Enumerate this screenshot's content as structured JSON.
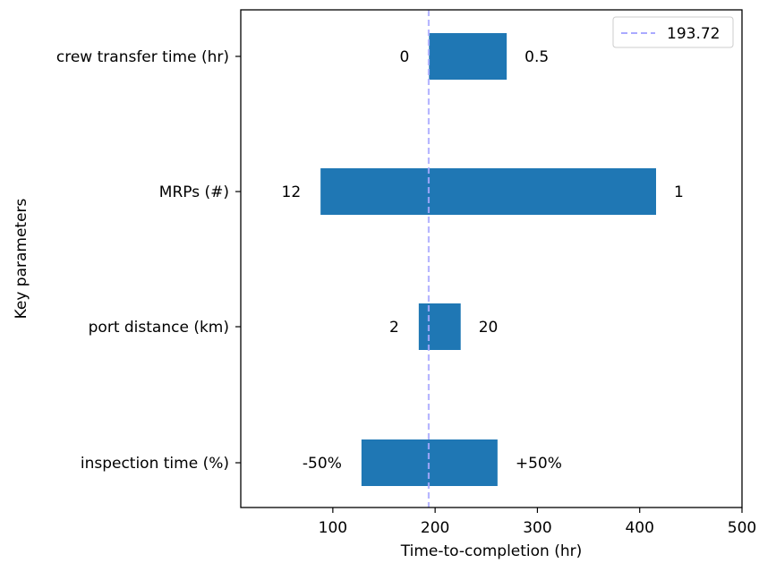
{
  "chart_data": {
    "type": "bar",
    "orientation": "horizontal",
    "subtype": "tornado",
    "xlabel": "Time-to-completion (hr)",
    "ylabel": "Key parameters",
    "xlim": [
      10,
      500
    ],
    "xticks": [
      "100",
      "200",
      "300",
      "400",
      "500"
    ],
    "grid": false,
    "legend": {
      "placement": "top-right",
      "entries": [
        {
          "label": "193.72",
          "style": "dashed",
          "color": "#aaaaff"
        }
      ]
    },
    "baseline": 193.72,
    "bar_color": "#1f77b4",
    "categories": [
      "crew transfer time (hr)",
      "MRPs (#)",
      "port distance (km)",
      "inspection time (%)"
    ],
    "bars": [
      {
        "category": "crew transfer time (hr)",
        "low": 194,
        "high": 270,
        "left_label": "0",
        "right_label": "0.5"
      },
      {
        "category": "MRPs (#)",
        "low": 88,
        "high": 416,
        "left_label": "12",
        "right_label": "1"
      },
      {
        "category": "port distance (km)",
        "low": 184,
        "high": 225,
        "left_label": "2",
        "right_label": "20"
      },
      {
        "category": "inspection time (%)",
        "low": 128,
        "high": 261,
        "left_label": "-50%",
        "right_label": "+50%"
      }
    ]
  }
}
